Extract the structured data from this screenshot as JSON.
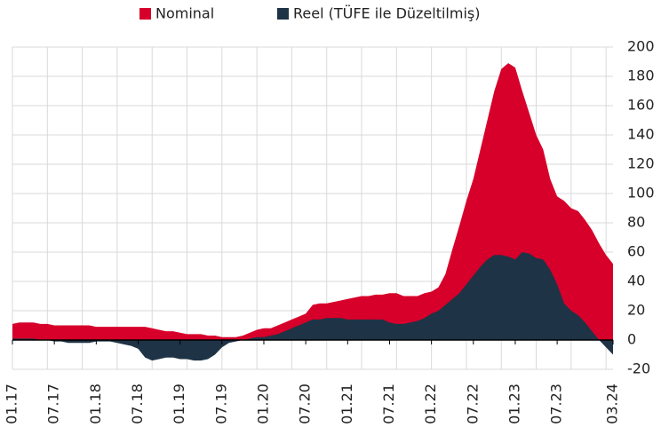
{
  "chart_data": {
    "type": "area",
    "categories": [
      "01.17",
      null,
      null,
      null,
      null,
      null,
      "07.17",
      null,
      null,
      null,
      null,
      null,
      "01.18",
      null,
      null,
      null,
      null,
      null,
      "07.18",
      null,
      null,
      null,
      null,
      null,
      "01.19",
      null,
      null,
      null,
      null,
      null,
      "07.19",
      null,
      null,
      null,
      null,
      null,
      "01.20",
      null,
      null,
      null,
      null,
      null,
      "07.20",
      null,
      null,
      null,
      null,
      null,
      "01.21",
      null,
      null,
      null,
      null,
      null,
      "07.21",
      null,
      null,
      null,
      null,
      null,
      "01.22",
      null,
      null,
      null,
      null,
      null,
      "07.22",
      null,
      null,
      null,
      null,
      null,
      "01.23",
      null,
      null,
      null,
      null,
      null,
      "07.23",
      null,
      null,
      null,
      null,
      null,
      null,
      null,
      "03.24"
    ],
    "series": [
      {
        "name": "Nominal",
        "color": "#d6002a",
        "values": [
          11,
          12,
          12,
          12,
          11,
          11,
          10,
          10,
          10,
          10,
          10,
          10,
          9,
          9,
          9,
          9,
          9,
          9,
          9,
          9,
          8,
          7,
          6,
          6,
          5,
          4,
          4,
          4,
          3,
          3,
          2,
          2,
          2,
          3,
          5,
          7,
          8,
          8,
          10,
          12,
          14,
          16,
          18,
          24,
          25,
          25,
          26,
          27,
          28,
          29,
          30,
          30,
          31,
          31,
          32,
          32,
          30,
          30,
          30,
          32,
          33,
          36,
          45,
          62,
          78,
          95,
          110,
          130,
          150,
          170,
          185,
          189,
          186,
          170,
          155,
          140,
          130,
          110,
          98,
          95,
          90,
          88,
          82,
          75,
          66,
          58,
          52
        ]
      },
      {
        "name": "Reel (TÜFE ile Düzeltilmiş)",
        "color": "#1f3346",
        "values": [
          1,
          1,
          1,
          1,
          0,
          0,
          -1,
          -1,
          -2,
          -2,
          -2,
          -2,
          -1,
          -1,
          -1,
          -2,
          -3,
          -4,
          -6,
          -12,
          -14,
          -13,
          -12,
          -12,
          -13,
          -13,
          -14,
          -14,
          -13,
          -10,
          -5,
          -2,
          -1,
          0,
          1,
          2,
          2,
          3,
          4,
          6,
          8,
          10,
          12,
          14,
          14,
          15,
          15,
          15,
          14,
          14,
          14,
          14,
          14,
          14,
          12,
          11,
          11,
          12,
          13,
          15,
          18,
          20,
          24,
          28,
          32,
          38,
          44,
          50,
          55,
          58,
          58,
          57,
          55,
          60,
          59,
          56,
          55,
          48,
          38,
          25,
          20,
          17,
          12,
          6,
          0,
          -5,
          -10
        ]
      }
    ],
    "ylim": [
      -20,
      200
    ],
    "yticks": [
      -20,
      0,
      20,
      40,
      60,
      80,
      100,
      120,
      140,
      160,
      180,
      200
    ],
    "grid": true,
    "legend": "top"
  }
}
